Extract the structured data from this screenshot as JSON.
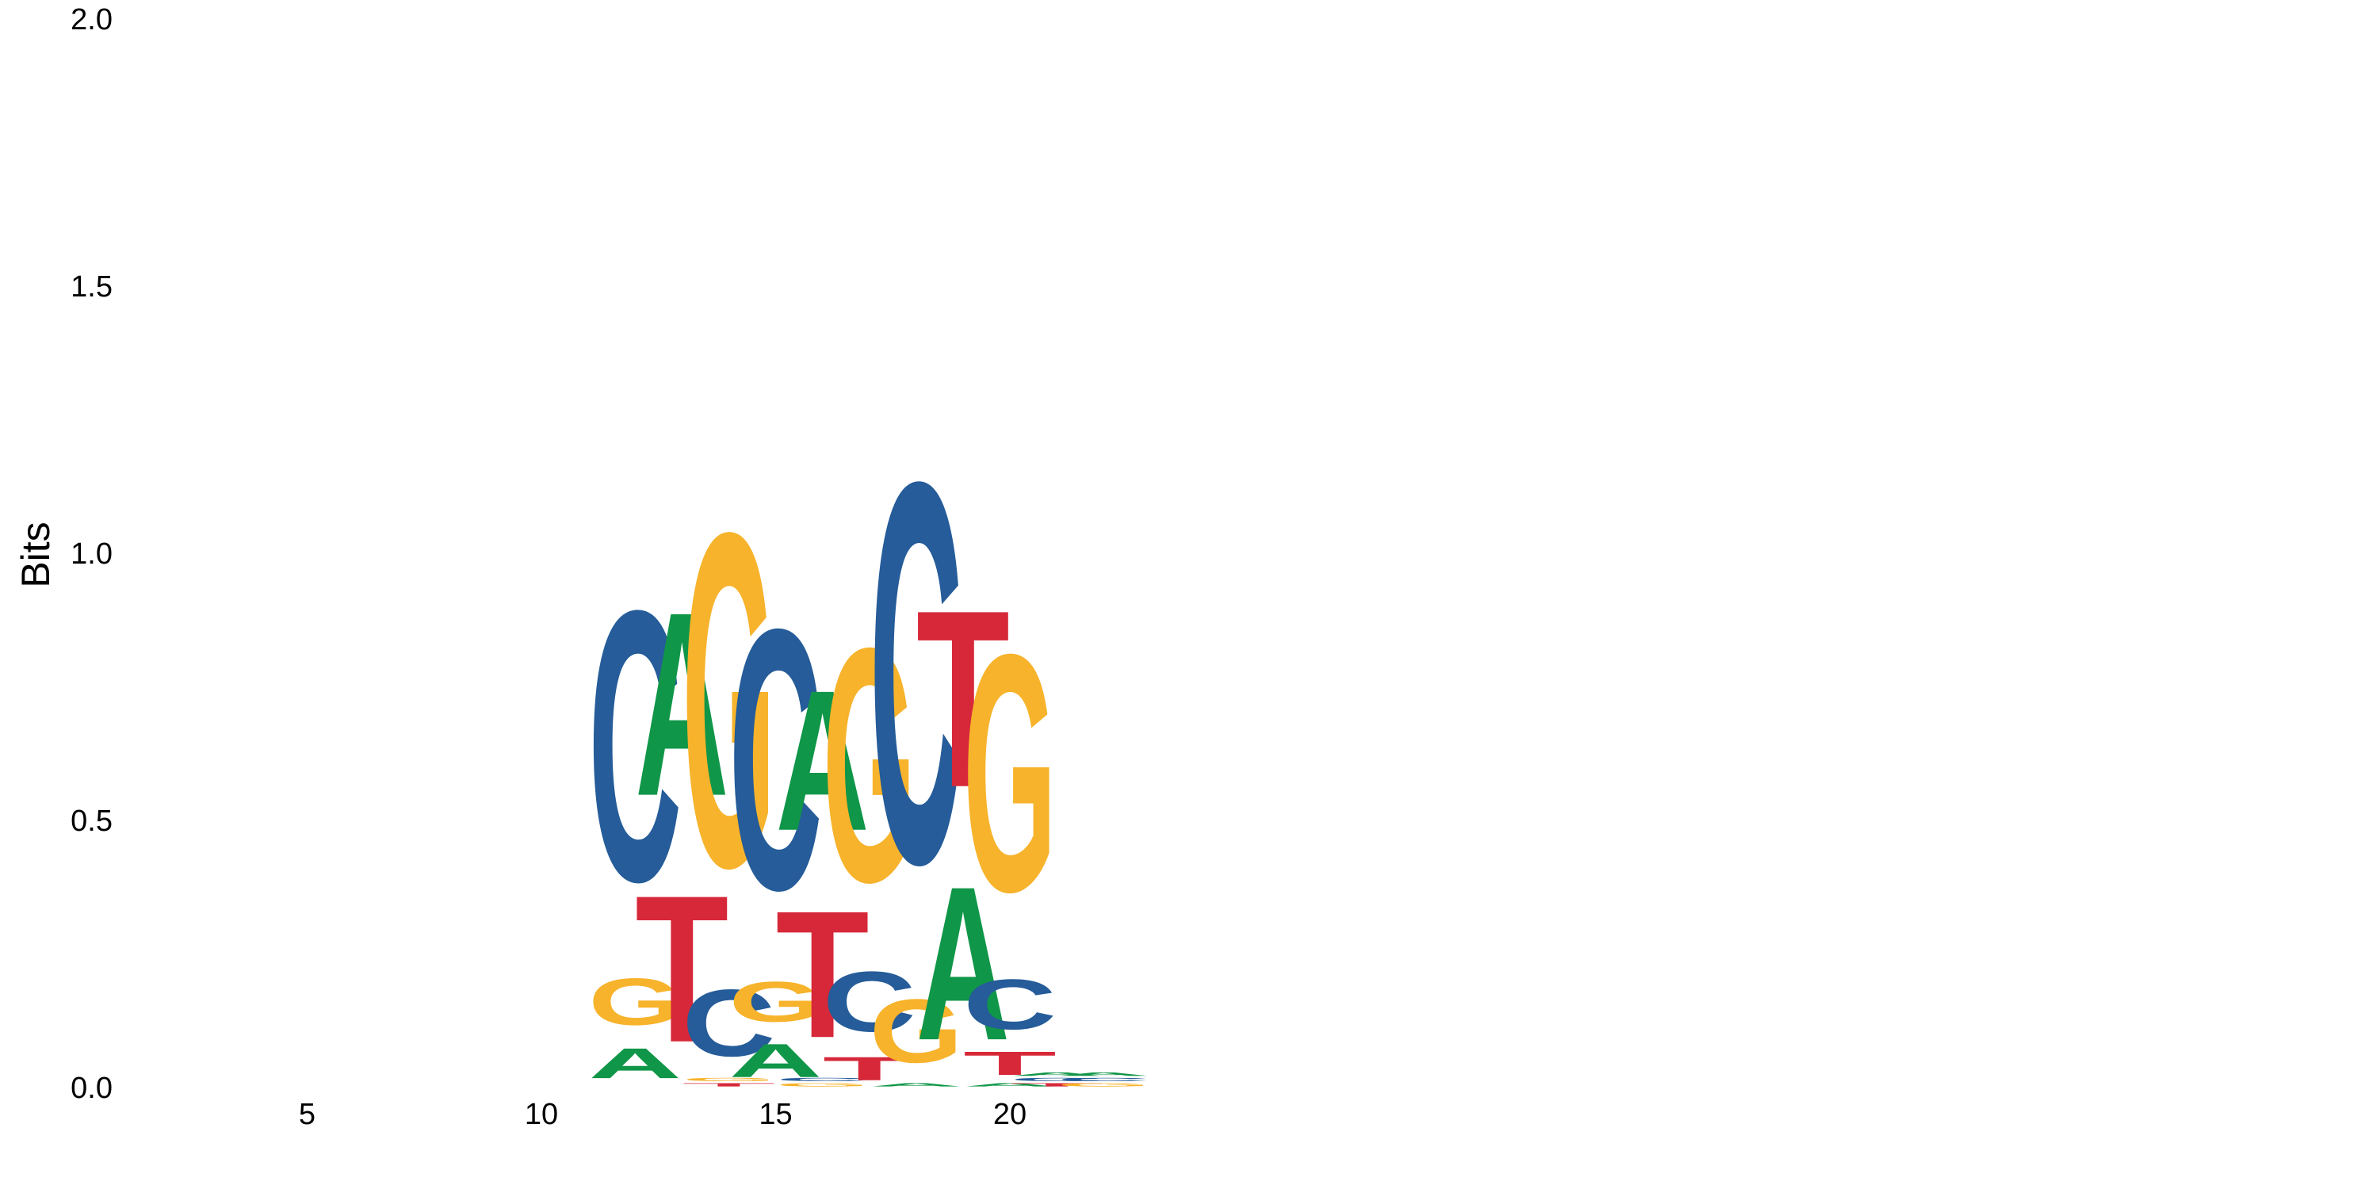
{
  "chart_data": {
    "type": "sequence-logo",
    "ylabel": "Bits",
    "ylim": [
      0,
      2
    ],
    "y_ticks": [
      "0.0",
      "0.5",
      "1.0",
      "1.5",
      "2.0"
    ],
    "x_ticks": [
      5,
      10,
      15,
      20
    ],
    "xlim": [
      0.5,
      24.8
    ],
    "grid": false,
    "colors": {
      "A": "#109648",
      "C": "#255C99",
      "G": "#F7B32B",
      "T": "#D62839"
    },
    "positions": [
      {
        "pos": 12,
        "letters": [
          {
            "base": "A",
            "bits": 0.09
          },
          {
            "base": "G",
            "bits": 0.14
          },
          {
            "base": "C",
            "bits": 0.81
          }
        ]
      },
      {
        "pos": 13,
        "letters": [
          {
            "base": "T",
            "bits": 0.44
          },
          {
            "base": "A",
            "bits": 0.55
          }
        ]
      },
      {
        "pos": 14,
        "letters": [
          {
            "base": "T",
            "bits": 0.01
          },
          {
            "base": "G",
            "bits": 0.01
          },
          {
            "base": "C",
            "bits": 0.2
          },
          {
            "base": "G",
            "bits": 1.0
          }
        ]
      },
      {
        "pos": 15,
        "letters": [
          {
            "base": "A",
            "bits": 0.1
          },
          {
            "base": "G",
            "bits": 0.12
          },
          {
            "base": "C",
            "bits": 0.78
          }
        ]
      },
      {
        "pos": 16,
        "letters": [
          {
            "base": "G",
            "bits": 0.01
          },
          {
            "base": "C",
            "bits": 0.01
          },
          {
            "base": "T",
            "bits": 0.38
          },
          {
            "base": "A",
            "bits": 0.42
          }
        ]
      },
      {
        "pos": 17,
        "letters": [
          {
            "base": "T",
            "bits": 0.07
          },
          {
            "base": "C",
            "bits": 0.18
          },
          {
            "base": "G",
            "bits": 0.7
          }
        ]
      },
      {
        "pos": 18,
        "letters": [
          {
            "base": "A",
            "bits": 0.01
          },
          {
            "base": "G",
            "bits": 0.19
          },
          {
            "base": "C",
            "bits": 1.14
          }
        ]
      },
      {
        "pos": 19,
        "letters": [
          {
            "base": "A",
            "bits": 0.46
          },
          {
            "base": "T",
            "bits": 0.53
          }
        ]
      },
      {
        "pos": 20,
        "letters": [
          {
            "base": "A",
            "bits": 0.01
          },
          {
            "base": "T",
            "bits": 0.07
          },
          {
            "base": "C",
            "bits": 0.15
          },
          {
            "base": "G",
            "bits": 0.71
          }
        ]
      },
      {
        "pos": 21,
        "letters": [
          {
            "base": "T",
            "bits": 0.01
          },
          {
            "base": "C",
            "bits": 0.01
          },
          {
            "base": "A",
            "bits": 0.01
          }
        ]
      },
      {
        "pos": 22,
        "letters": [
          {
            "base": "G",
            "bits": 0.01
          },
          {
            "base": "C",
            "bits": 0.01
          },
          {
            "base": "A",
            "bits": 0.01
          }
        ]
      }
    ]
  }
}
